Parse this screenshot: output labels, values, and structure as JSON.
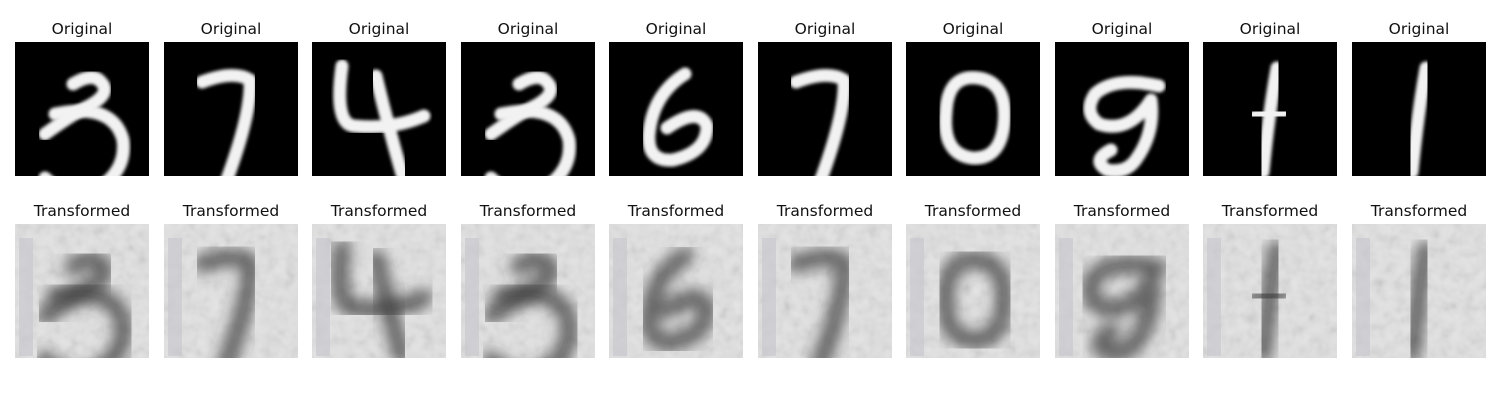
{
  "panels": [
    {
      "top_title": "Original",
      "bottom_title": "Transformed",
      "digit": "3"
    },
    {
      "top_title": "Original",
      "bottom_title": "Transformed",
      "digit": "7"
    },
    {
      "top_title": "Original",
      "bottom_title": "Transformed",
      "digit": "4"
    },
    {
      "top_title": "Original",
      "bottom_title": "Transformed",
      "digit": "3"
    },
    {
      "top_title": "Original",
      "bottom_title": "Transformed",
      "digit": "6"
    },
    {
      "top_title": "Original",
      "bottom_title": "Transformed",
      "digit": "7"
    },
    {
      "top_title": "Original",
      "bottom_title": "Transformed",
      "digit": "0"
    },
    {
      "top_title": "Original",
      "bottom_title": "Transformed",
      "digit": "9"
    },
    {
      "top_title": "Original",
      "bottom_title": "Transformed",
      "digit": "1"
    },
    {
      "top_title": "Original",
      "bottom_title": "Transformed",
      "digit": "1"
    }
  ]
}
